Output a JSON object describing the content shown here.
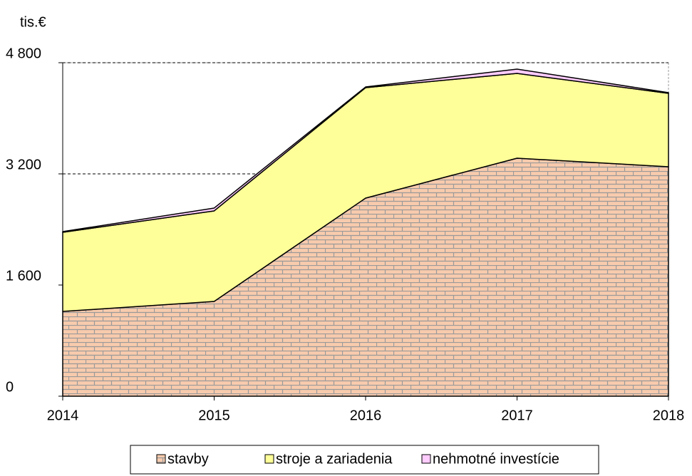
{
  "chart_data": {
    "type": "area",
    "y_axis_label": "tis.€",
    "categories": [
      "2014",
      "2015",
      "2016",
      "2017",
      "2018"
    ],
    "series": [
      {
        "name": "stavby",
        "color": "#f8cbad",
        "values": [
          1220,
          1364,
          2851,
          3426,
          3303
        ]
      },
      {
        "name": "stroje a zariadenia",
        "color": "#ffff99",
        "values": [
          1139,
          1303,
          1590,
          1220,
          1056
        ]
      },
      {
        "name": "nehmotné investície",
        "color": "#ffccff",
        "values": [
          10,
          41,
          10,
          62,
          10
        ]
      }
    ],
    "stacked": true,
    "ylim": [
      0,
      4800
    ],
    "yticks": [
      0,
      {
        "value": 1600,
        "label": "1 600"
      },
      {
        "value": 3200,
        "label": "3 200"
      },
      {
        "value": 4800,
        "label": "4 800"
      }
    ],
    "grid": true,
    "legend": "bottom"
  }
}
